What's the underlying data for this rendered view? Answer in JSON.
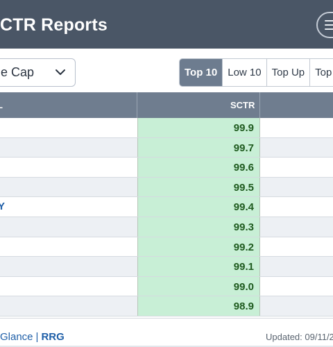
{
  "header": {
    "title": "CTR Reports",
    "menu_icon": "hamburger-menu-icon"
  },
  "filter": {
    "selected": "e Cap",
    "chevron_icon": "chevron-down-icon"
  },
  "tabs": [
    {
      "label": "Top 10",
      "active": true
    },
    {
      "label": "Low 10",
      "active": false
    },
    {
      "label": "Top Up",
      "active": false
    },
    {
      "label": "Top",
      "active": false
    }
  ],
  "table": {
    "columns": {
      "symbol": "L",
      "sctr": "SCTR"
    },
    "rows": [
      {
        "symbol": "",
        "sctr": "99.9"
      },
      {
        "symbol": "",
        "sctr": "99.7"
      },
      {
        "symbol": "",
        "sctr": "99.6"
      },
      {
        "symbol": "",
        "sctr": "99.5"
      },
      {
        "symbol": "Y",
        "sctr": "99.4"
      },
      {
        "symbol": "",
        "sctr": "99.3"
      },
      {
        "symbol": "",
        "sctr": "99.2"
      },
      {
        "symbol": "",
        "sctr": "99.1"
      },
      {
        "symbol": "",
        "sctr": "99.0"
      },
      {
        "symbol": "",
        "sctr": "98.9"
      }
    ]
  },
  "footer": {
    "link_glance": "Glance",
    "separator": "|",
    "link_rrg": "RRG",
    "updated": "Updated: 09/11/2"
  },
  "colors": {
    "header_bg": "#4a5666",
    "active_tab": "#6d7c8f",
    "sctr_cell": "#c8efd6",
    "link": "#1f5fa8"
  }
}
